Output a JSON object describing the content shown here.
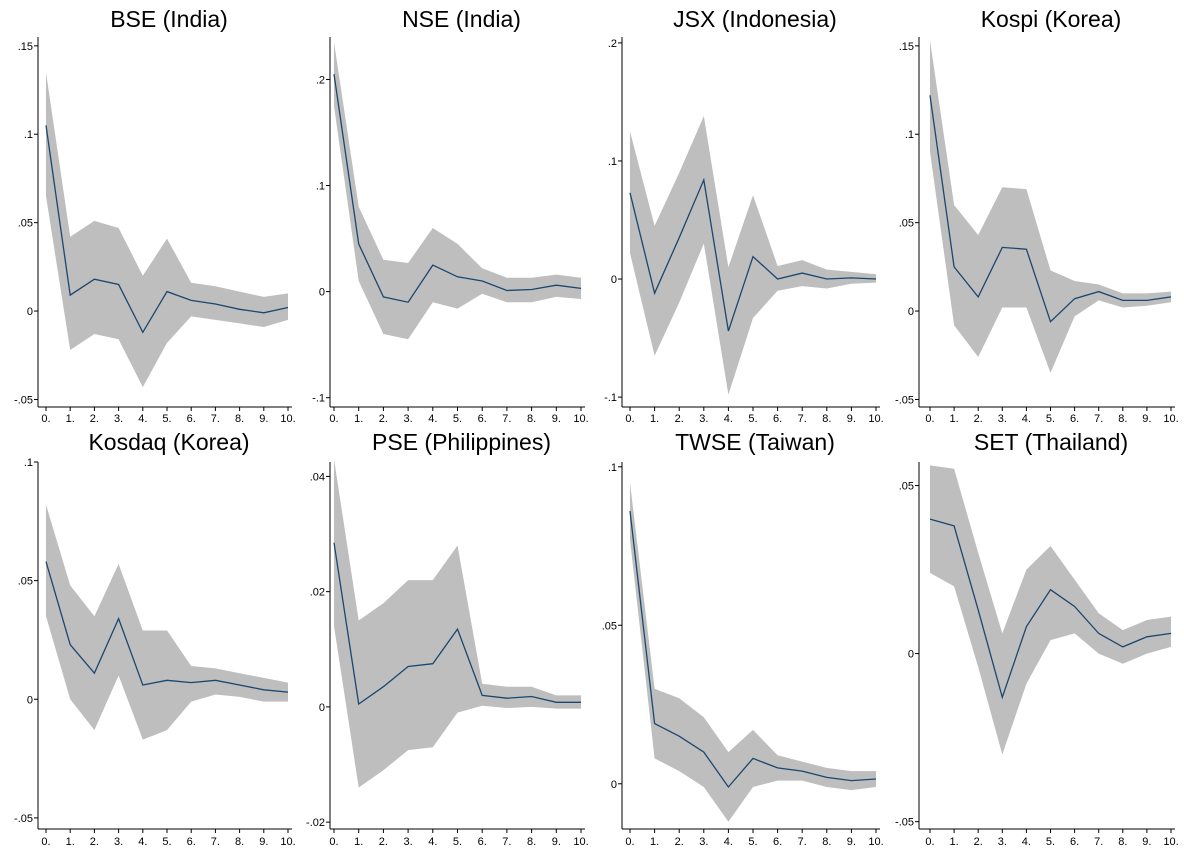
{
  "chart_data": [
    {
      "type": "line",
      "title": "BSE (India)",
      "categories": [
        "0.",
        "1.",
        "2.",
        "3.",
        "4.",
        "5.",
        "6.",
        "7.",
        "8.",
        "9.",
        "10."
      ],
      "y_ticks": [
        {
          "v": 0.15,
          "label": ".15"
        },
        {
          "v": 0.1,
          "label": ".1"
        },
        {
          "v": 0.05,
          "label": ".05"
        },
        {
          "v": 0,
          "label": "0"
        },
        {
          "v": -0.05,
          "label": "-.05"
        }
      ],
      "ylim": [
        -0.052,
        0.155
      ],
      "series": [
        {
          "role": "upper",
          "values": [
            0.135,
            0.042,
            0.051,
            0.047,
            0.02,
            0.041,
            0.016,
            0.014,
            0.011,
            0.008,
            0.01
          ]
        },
        {
          "role": "estimate",
          "values": [
            0.105,
            0.009,
            0.018,
            0.015,
            -0.012,
            0.011,
            0.006,
            0.004,
            0.001,
            -0.001,
            0.002
          ]
        },
        {
          "role": "lower",
          "values": [
            0.065,
            -0.022,
            -0.013,
            -0.016,
            -0.043,
            -0.018,
            -0.003,
            -0.005,
            -0.007,
            -0.009,
            -0.005
          ]
        }
      ]
    },
    {
      "type": "line",
      "title": "NSE (India)",
      "categories": [
        "0.",
        "1.",
        "2.",
        "3.",
        "4.",
        "5.",
        "6.",
        "7.",
        "8.",
        "9.",
        "10."
      ],
      "y_ticks": [
        {
          "v": 0.2,
          "label": ".2"
        },
        {
          "v": 0.1,
          "label": ".1"
        },
        {
          "v": 0,
          "label": "0"
        },
        {
          "v": -0.1,
          "label": "-.1"
        }
      ],
      "ylim": [
        -0.105,
        0.24
      ],
      "series": [
        {
          "role": "upper",
          "values": [
            0.235,
            0.08,
            0.03,
            0.027,
            0.06,
            0.045,
            0.022,
            0.013,
            0.013,
            0.016,
            0.013
          ]
        },
        {
          "role": "estimate",
          "values": [
            0.205,
            0.045,
            -0.005,
            -0.01,
            0.025,
            0.014,
            0.01,
            0.001,
            0.002,
            0.006,
            0.003
          ]
        },
        {
          "role": "lower",
          "values": [
            0.175,
            0.01,
            -0.04,
            -0.045,
            -0.01,
            -0.016,
            -0.002,
            -0.01,
            -0.01,
            -0.005,
            -0.007
          ]
        }
      ]
    },
    {
      "type": "line",
      "title": "JSX (Indonesia)",
      "categories": [
        "0.",
        "1.",
        "2.",
        "3.",
        "4.",
        "5.",
        "6.",
        "7.",
        "8.",
        "9.",
        "10."
      ],
      "y_ticks": [
        {
          "v": 0.2,
          "label": ".2"
        },
        {
          "v": 0.1,
          "label": ".1"
        },
        {
          "v": 0,
          "label": "0"
        },
        {
          "v": -0.1,
          "label": "-.1"
        }
      ],
      "ylim": [
        -0.105,
        0.205
      ],
      "series": [
        {
          "role": "upper",
          "values": [
            0.125,
            0.045,
            0.09,
            0.138,
            0.01,
            0.071,
            0.011,
            0.016,
            0.008,
            0.006,
            0.004
          ]
        },
        {
          "role": "estimate",
          "values": [
            0.073,
            -0.012,
            0.035,
            0.084,
            -0.044,
            0.019,
            0.0,
            0.005,
            0.0,
            0.001,
            0.0
          ]
        },
        {
          "role": "lower",
          "values": [
            0.022,
            -0.065,
            -0.02,
            0.03,
            -0.098,
            -0.033,
            -0.01,
            -0.006,
            -0.008,
            -0.004,
            -0.003
          ]
        }
      ]
    },
    {
      "type": "line",
      "title": "Kospi (Korea)",
      "categories": [
        "0.",
        "1.",
        "2.",
        "3.",
        "4.",
        "5.",
        "6.",
        "7.",
        "8.",
        "9.",
        "10."
      ],
      "y_ticks": [
        {
          "v": 0.15,
          "label": ".15"
        },
        {
          "v": 0.1,
          "label": ".1"
        },
        {
          "v": 0.05,
          "label": ".05"
        },
        {
          "v": 0,
          "label": "0"
        },
        {
          "v": -0.05,
          "label": "-.05"
        }
      ],
      "ylim": [
        -0.052,
        0.155
      ],
      "series": [
        {
          "role": "upper",
          "values": [
            0.153,
            0.06,
            0.043,
            0.07,
            0.069,
            0.023,
            0.017,
            0.015,
            0.01,
            0.01,
            0.011
          ]
        },
        {
          "role": "estimate",
          "values": [
            0.122,
            0.025,
            0.008,
            0.036,
            0.035,
            -0.006,
            0.007,
            0.011,
            0.006,
            0.006,
            0.008
          ]
        },
        {
          "role": "lower",
          "values": [
            0.09,
            -0.008,
            -0.026,
            0.002,
            0.002,
            -0.035,
            -0.003,
            0.006,
            0.002,
            0.003,
            0.005
          ]
        }
      ]
    },
    {
      "type": "line",
      "title": "Kosdaq (Korea)",
      "categories": [
        "0.",
        "1.",
        "2.",
        "3.",
        "4.",
        "5.",
        "6.",
        "7.",
        "8.",
        "9.",
        "10."
      ],
      "y_ticks": [
        {
          "v": 0.1,
          "label": ".1"
        },
        {
          "v": 0.05,
          "label": ".05"
        },
        {
          "v": 0,
          "label": "0"
        },
        {
          "v": -0.05,
          "label": "-.05"
        }
      ],
      "ylim": [
        -0.053,
        0.1
      ],
      "series": [
        {
          "role": "upper",
          "values": [
            0.082,
            0.048,
            0.035,
            0.057,
            0.029,
            0.029,
            0.014,
            0.013,
            0.011,
            0.009,
            0.007
          ]
        },
        {
          "role": "estimate",
          "values": [
            0.058,
            0.023,
            0.011,
            0.034,
            0.006,
            0.008,
            0.007,
            0.008,
            0.006,
            0.004,
            0.003
          ]
        },
        {
          "role": "lower",
          "values": [
            0.035,
            0.0,
            -0.013,
            0.01,
            -0.017,
            -0.013,
            -0.001,
            0.002,
            0.001,
            -0.001,
            -0.001
          ]
        }
      ]
    },
    {
      "type": "line",
      "title": "PSE (Philippines)",
      "categories": [
        "0.",
        "1.",
        "2.",
        "3.",
        "4.",
        "5.",
        "6.",
        "7.",
        "8.",
        "9.",
        "10."
      ],
      "y_ticks": [
        {
          "v": 0.04,
          "label": ".04"
        },
        {
          "v": 0.02,
          "label": ".02"
        },
        {
          "v": 0,
          "label": "0"
        },
        {
          "v": -0.02,
          "label": "-.02"
        }
      ],
      "ylim": [
        -0.0205,
        0.0425
      ],
      "series": [
        {
          "role": "upper",
          "values": [
            0.043,
            0.015,
            0.018,
            0.022,
            0.022,
            0.028,
            0.004,
            0.0035,
            0.0035,
            0.002,
            0.002
          ]
        },
        {
          "role": "estimate",
          "values": [
            0.0285,
            0.0005,
            0.0035,
            0.007,
            0.0075,
            0.0135,
            0.002,
            0.0015,
            0.0018,
            0.0008,
            0.0008
          ]
        },
        {
          "role": "lower",
          "values": [
            0.014,
            -0.014,
            -0.011,
            -0.0075,
            -0.007,
            -0.001,
            0.0002,
            -0.0002,
            0.0,
            -0.0003,
            -0.0003
          ]
        }
      ]
    },
    {
      "type": "line",
      "title": "TWSE (Taiwan)",
      "categories": [
        "0.",
        "1.",
        "2.",
        "3.",
        "4.",
        "5.",
        "6.",
        "7.",
        "8.",
        "9.",
        "10."
      ],
      "y_ticks": [
        {
          "v": 0.1,
          "label": ".1"
        },
        {
          "v": 0.05,
          "label": ".05"
        },
        {
          "v": 0,
          "label": "0"
        }
      ],
      "ylim": [
        -0.013,
        0.1015
      ],
      "series": [
        {
          "role": "upper",
          "values": [
            0.095,
            0.03,
            0.027,
            0.021,
            0.01,
            0.017,
            0.009,
            0.007,
            0.005,
            0.004,
            0.004
          ]
        },
        {
          "role": "estimate",
          "values": [
            0.086,
            0.019,
            0.015,
            0.01,
            -0.001,
            0.008,
            0.005,
            0.004,
            0.002,
            0.001,
            0.0015
          ]
        },
        {
          "role": "lower",
          "values": [
            0.077,
            0.008,
            0.004,
            -0.001,
            -0.012,
            -0.001,
            0.001,
            0.001,
            -0.001,
            -0.002,
            -0.001
          ]
        }
      ]
    },
    {
      "type": "line",
      "title": "SET (Thailand)",
      "categories": [
        "0.",
        "1.",
        "2.",
        "3.",
        "4.",
        "5.",
        "6.",
        "7.",
        "8.",
        "9.",
        "10."
      ],
      "y_ticks": [
        {
          "v": 0.05,
          "label": ".05"
        },
        {
          "v": 0,
          "label": "0"
        },
        {
          "v": -0.05,
          "label": "-.05"
        }
      ],
      "ylim": [
        -0.051,
        0.057
      ],
      "series": [
        {
          "role": "upper",
          "values": [
            0.056,
            0.055,
            0.03,
            0.006,
            0.025,
            0.032,
            0.022,
            0.012,
            0.007,
            0.01,
            0.011
          ]
        },
        {
          "role": "estimate",
          "values": [
            0.04,
            0.038,
            0.013,
            -0.013,
            0.008,
            0.019,
            0.014,
            0.006,
            0.002,
            0.005,
            0.006
          ]
        },
        {
          "role": "lower",
          "values": [
            0.024,
            0.02,
            -0.004,
            -0.03,
            -0.009,
            0.004,
            0.006,
            0.0,
            -0.003,
            0.0,
            0.002
          ]
        }
      ]
    }
  ],
  "colors": {
    "band": "#bebebe",
    "line": "#1a476f",
    "axis": "#000000"
  }
}
